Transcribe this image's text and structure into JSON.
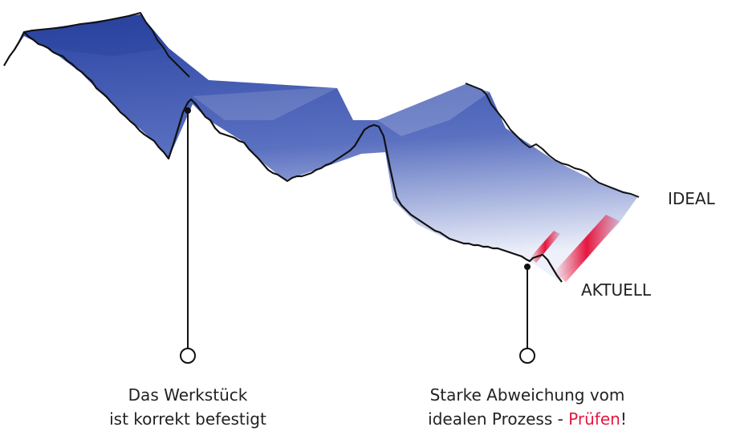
{
  "labels": {
    "ideal": "IDEAL",
    "actual": "AKTUELL"
  },
  "callouts": {
    "left": {
      "line1": "Das Werkstück",
      "line2": "ist korrekt befestigt"
    },
    "right": {
      "line1": "Starke Abweichung vom",
      "line2_prefix": "idealen Prozess - ",
      "line2_highlight": "Prüfen",
      "line2_suffix": "!"
    }
  },
  "colors": {
    "ribbon": "#2d4aa8",
    "ribbon_light": "#ffffff",
    "deviation": "#e5173f",
    "outline": "#111111",
    "highlight_text": "#e5173f"
  }
}
